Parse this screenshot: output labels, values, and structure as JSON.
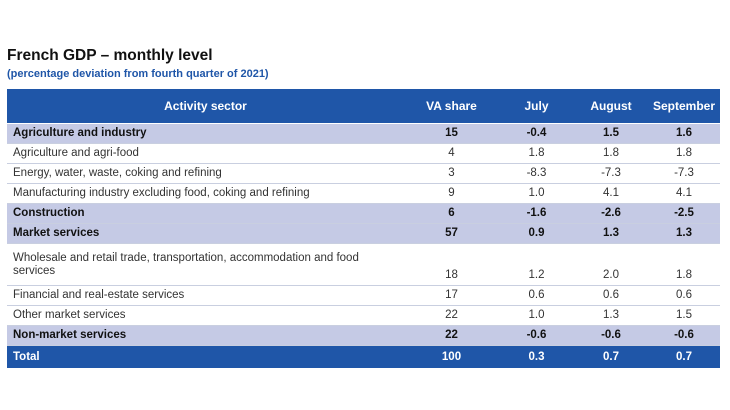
{
  "title": "French GDP – monthly level",
  "subtitle": "(percentage deviation from fourth quarter of 2021)",
  "chart_data": {
    "type": "table",
    "title": "French GDP – monthly level",
    "subtitle": "(percentage deviation from fourth quarter of 2021)",
    "columns": [
      "Activity sector",
      "VA share",
      "July",
      "August",
      "September"
    ],
    "rows": [
      {
        "sector": "Agriculture and industry",
        "va_share": "15",
        "july": "-0.4",
        "august": "1.5",
        "september": "1.6",
        "kind": "group"
      },
      {
        "sector": "Agriculture and agri-food",
        "va_share": "4",
        "july": "1.8",
        "august": "1.8",
        "september": "1.8",
        "kind": "item"
      },
      {
        "sector": "Energy, water, waste, coking and refining",
        "va_share": "3",
        "july": "-8.3",
        "august": "-7.3",
        "september": "-7.3",
        "kind": "item"
      },
      {
        "sector": "Manufacturing industry excluding food, coking and refining",
        "va_share": "9",
        "july": "1.0",
        "august": "4.1",
        "september": "4.1",
        "kind": "item"
      },
      {
        "sector": "Construction",
        "va_share": "6",
        "july": "-1.6",
        "august": "-2.6",
        "september": "-2.5",
        "kind": "group"
      },
      {
        "sector": "Market services",
        "va_share": "57",
        "july": "0.9",
        "august": "1.3",
        "september": "1.3",
        "kind": "group"
      },
      {
        "sector": "Wholesale and retail trade, transportation, accommodation and food services",
        "va_share": "18",
        "july": "1.2",
        "august": "2.0",
        "september": "1.8",
        "kind": "item"
      },
      {
        "sector": "Financial and real-estate services",
        "va_share": "17",
        "july": "0.6",
        "august": "0.6",
        "september": "0.6",
        "kind": "item"
      },
      {
        "sector": "Other market services",
        "va_share": "22",
        "july": "1.0",
        "august": "1.3",
        "september": "1.5",
        "kind": "item"
      },
      {
        "sector": "Non-market services",
        "va_share": "22",
        "july": "-0.6",
        "august": "-0.6",
        "september": "-0.6",
        "kind": "group"
      },
      {
        "sector": "Total",
        "va_share": "100",
        "july": "0.3",
        "august": "0.7",
        "september": "0.7",
        "kind": "total"
      }
    ]
  }
}
